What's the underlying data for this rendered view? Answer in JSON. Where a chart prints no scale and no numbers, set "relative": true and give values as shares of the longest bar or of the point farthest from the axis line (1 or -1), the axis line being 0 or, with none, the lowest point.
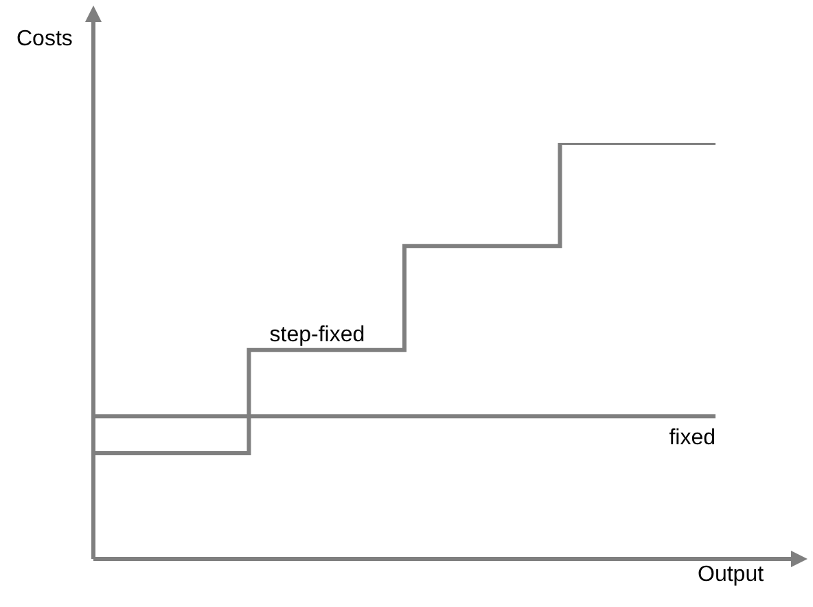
{
  "chart_data": {
    "type": "step",
    "relative": true,
    "xlabel": "Output",
    "ylabel": "Costs",
    "categories": [
      null,
      null,
      null,
      null,
      null
    ],
    "legend": false,
    "series": [
      {
        "name": "step-fixed",
        "color": "#7f7f7f",
        "values": [
          0.254,
          0.502,
          0.752,
          1,
          1
        ]
      },
      {
        "name": "fixed",
        "type": "line",
        "color": "#7f7f7f",
        "values": [
          0.343,
          0.343,
          0.343,
          0.343,
          0.343
        ]
      }
    ]
  }
}
